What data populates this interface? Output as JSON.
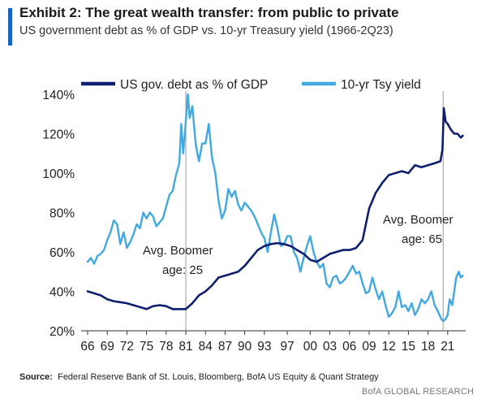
{
  "header": {
    "title": "Exhibit 2: The great wealth transfer: from public to private",
    "subtitle": "US government debt as % of GDP vs. 10-yr Treasury yield (1966-2Q23)",
    "accent_color": "#1565c0"
  },
  "footer": {
    "source_label": "Source:",
    "source_text": "Federal Reserve Bank of St. Louis, Bloomberg, BofA US Equity & Quant Strategy",
    "brand": "BofA GLOBAL RESEARCH"
  },
  "chart_data": {
    "type": "line",
    "title": "",
    "xlabel": "",
    "ylabel": "",
    "x_tick_labels": [
      "66",
      "69",
      "72",
      "75",
      "78",
      "81",
      "84",
      "87",
      "90",
      "93",
      "97",
      "00",
      "03",
      "06",
      "09",
      "12",
      "15",
      "18",
      "21"
    ],
    "x_tick_years": [
      1966,
      1969,
      1972,
      1975,
      1978,
      1981,
      1984,
      1987,
      1990,
      1993,
      1996.5,
      2000,
      2003,
      2006,
      2009,
      2012,
      2015,
      2018,
      2021
    ],
    "xlim": [
      1966,
      2023.5
    ],
    "ylim": [
      20,
      140
    ],
    "y_ticks": [
      20,
      40,
      60,
      80,
      100,
      120,
      140
    ],
    "y_tick_labels": [
      "20%",
      "40%",
      "60%",
      "80%",
      "100%",
      "120%",
      "140%"
    ],
    "grid": false,
    "legend_position": "top",
    "series": [
      {
        "name": "US gov. debt as % of GDP",
        "color": "#0d1f6e",
        "points": [
          [
            1966,
            40
          ],
          [
            1967,
            39
          ],
          [
            1968,
            38
          ],
          [
            1969,
            36
          ],
          [
            1970,
            35
          ],
          [
            1971,
            34.5
          ],
          [
            1972,
            34
          ],
          [
            1973,
            33
          ],
          [
            1974,
            32
          ],
          [
            1975,
            31
          ],
          [
            1976,
            32.5
          ],
          [
            1977,
            33
          ],
          [
            1978,
            32.5
          ],
          [
            1979,
            31
          ],
          [
            1980,
            31
          ],
          [
            1981,
            31
          ],
          [
            1982,
            34
          ],
          [
            1983,
            38
          ],
          [
            1984,
            40
          ],
          [
            1985,
            43
          ],
          [
            1986,
            47
          ],
          [
            1987,
            48
          ],
          [
            1988,
            49
          ],
          [
            1989,
            50
          ],
          [
            1990,
            53
          ],
          [
            1991,
            57
          ],
          [
            1992,
            61
          ],
          [
            1993,
            63
          ],
          [
            1994,
            64
          ],
          [
            1995,
            64.5
          ],
          [
            1996,
            64
          ],
          [
            1997,
            63
          ],
          [
            1998,
            61
          ],
          [
            1999,
            59
          ],
          [
            2000,
            56
          ],
          [
            2001,
            55
          ],
          [
            2002,
            57
          ],
          [
            2003,
            59
          ],
          [
            2004,
            60
          ],
          [
            2005,
            61
          ],
          [
            2006,
            61
          ],
          [
            2007,
            62
          ],
          [
            2008,
            66
          ],
          [
            2009,
            82
          ],
          [
            2010,
            90
          ],
          [
            2011,
            95
          ],
          [
            2012,
            99
          ],
          [
            2013,
            100
          ],
          [
            2014,
            101
          ],
          [
            2015,
            100
          ],
          [
            2016,
            104
          ],
          [
            2017,
            103
          ],
          [
            2018,
            104
          ],
          [
            2019,
            105
          ],
          [
            2019.9,
            106
          ],
          [
            2020.2,
            112
          ],
          [
            2020.4,
            133
          ],
          [
            2020.7,
            126
          ],
          [
            2021,
            125
          ],
          [
            2021.5,
            122
          ],
          [
            2022,
            120
          ],
          [
            2022.5,
            120
          ],
          [
            2023,
            118
          ],
          [
            2023.3,
            119
          ]
        ]
      },
      {
        "name": "10-yr Tsy yield",
        "color": "#41a8e0",
        "points": [
          [
            1966,
            55
          ],
          [
            1966.5,
            57
          ],
          [
            1967,
            54
          ],
          [
            1967.5,
            58
          ],
          [
            1968,
            59
          ],
          [
            1968.5,
            61
          ],
          [
            1969,
            66
          ],
          [
            1969.5,
            70
          ],
          [
            1970,
            76
          ],
          [
            1970.5,
            74
          ],
          [
            1971,
            64
          ],
          [
            1971.5,
            70
          ],
          [
            1972,
            62
          ],
          [
            1972.5,
            65
          ],
          [
            1973,
            69
          ],
          [
            1973.5,
            74
          ],
          [
            1974,
            72
          ],
          [
            1974.5,
            80
          ],
          [
            1975,
            77
          ],
          [
            1975.5,
            80
          ],
          [
            1976,
            78
          ],
          [
            1976.5,
            73
          ],
          [
            1977,
            75
          ],
          [
            1977.5,
            77
          ],
          [
            1978,
            83
          ],
          [
            1978.5,
            89
          ],
          [
            1979,
            91
          ],
          [
            1979.5,
            99
          ],
          [
            1980,
            105
          ],
          [
            1980.3,
            125
          ],
          [
            1980.6,
            110
          ],
          [
            1981,
            126
          ],
          [
            1981.3,
            140
          ],
          [
            1981.6,
            128
          ],
          [
            1982,
            134
          ],
          [
            1982.5,
            115
          ],
          [
            1983,
            106
          ],
          [
            1983.5,
            115
          ],
          [
            1984,
            115
          ],
          [
            1984.5,
            125
          ],
          [
            1985,
            108
          ],
          [
            1985.5,
            100
          ],
          [
            1986,
            86
          ],
          [
            1986.5,
            77
          ],
          [
            1987,
            81
          ],
          [
            1987.5,
            92
          ],
          [
            1988,
            88
          ],
          [
            1988.5,
            91
          ],
          [
            1989,
            84
          ],
          [
            1989.5,
            81
          ],
          [
            1990,
            85
          ],
          [
            1990.5,
            83
          ],
          [
            1991,
            81
          ],
          [
            1991.5,
            78
          ],
          [
            1992,
            74
          ],
          [
            1992.5,
            70
          ],
          [
            1993,
            67
          ],
          [
            1993.5,
            60
          ],
          [
            1994,
            70
          ],
          [
            1994.5,
            79
          ],
          [
            1995,
            72
          ],
          [
            1995.5,
            63
          ],
          [
            1996,
            64
          ],
          [
            1996.5,
            68
          ],
          [
            1997,
            68
          ],
          [
            1997.5,
            60
          ],
          [
            1998,
            57
          ],
          [
            1998.5,
            50
          ],
          [
            1999,
            57
          ],
          [
            1999.5,
            63
          ],
          [
            2000,
            68
          ],
          [
            2000.5,
            60
          ],
          [
            2001,
            55
          ],
          [
            2001.5,
            52
          ],
          [
            2002,
            54
          ],
          [
            2002.5,
            44
          ],
          [
            2003,
            42
          ],
          [
            2003.5,
            47
          ],
          [
            2004,
            48
          ],
          [
            2004.5,
            44
          ],
          [
            2005,
            45
          ],
          [
            2005.5,
            47
          ],
          [
            2006,
            50
          ],
          [
            2006.5,
            53
          ],
          [
            2007,
            49
          ],
          [
            2007.5,
            50
          ],
          [
            2008,
            44
          ],
          [
            2008.5,
            39
          ],
          [
            2009,
            40
          ],
          [
            2009.5,
            47
          ],
          [
            2010,
            41
          ],
          [
            2010.5,
            36
          ],
          [
            2011,
            40
          ],
          [
            2011.5,
            33
          ],
          [
            2012,
            27
          ],
          [
            2012.5,
            29
          ],
          [
            2013,
            32
          ],
          [
            2013.5,
            40
          ],
          [
            2014,
            32
          ],
          [
            2014.5,
            33
          ],
          [
            2015,
            30
          ],
          [
            2015.5,
            34
          ],
          [
            2016,
            28
          ],
          [
            2016.5,
            31
          ],
          [
            2017,
            36
          ],
          [
            2017.5,
            34
          ],
          [
            2018,
            36
          ],
          [
            2018.5,
            40
          ],
          [
            2019,
            33
          ],
          [
            2019.5,
            30
          ],
          [
            2020,
            26
          ],
          [
            2020.3,
            25
          ],
          [
            2020.7,
            26
          ],
          [
            2021,
            28
          ],
          [
            2021.3,
            36
          ],
          [
            2021.7,
            33
          ],
          [
            2022,
            40
          ],
          [
            2022.3,
            47
          ],
          [
            2022.7,
            50
          ],
          [
            2023,
            47
          ],
          [
            2023.3,
            48
          ]
        ]
      }
    ],
    "annotations": [
      {
        "line1": "Avg. Boomer",
        "line2": "age: 25",
        "marker_year": 1981
      },
      {
        "line1": "Avg. Boomer",
        "line2": "age: 65",
        "marker_year": 2020.3
      }
    ]
  }
}
